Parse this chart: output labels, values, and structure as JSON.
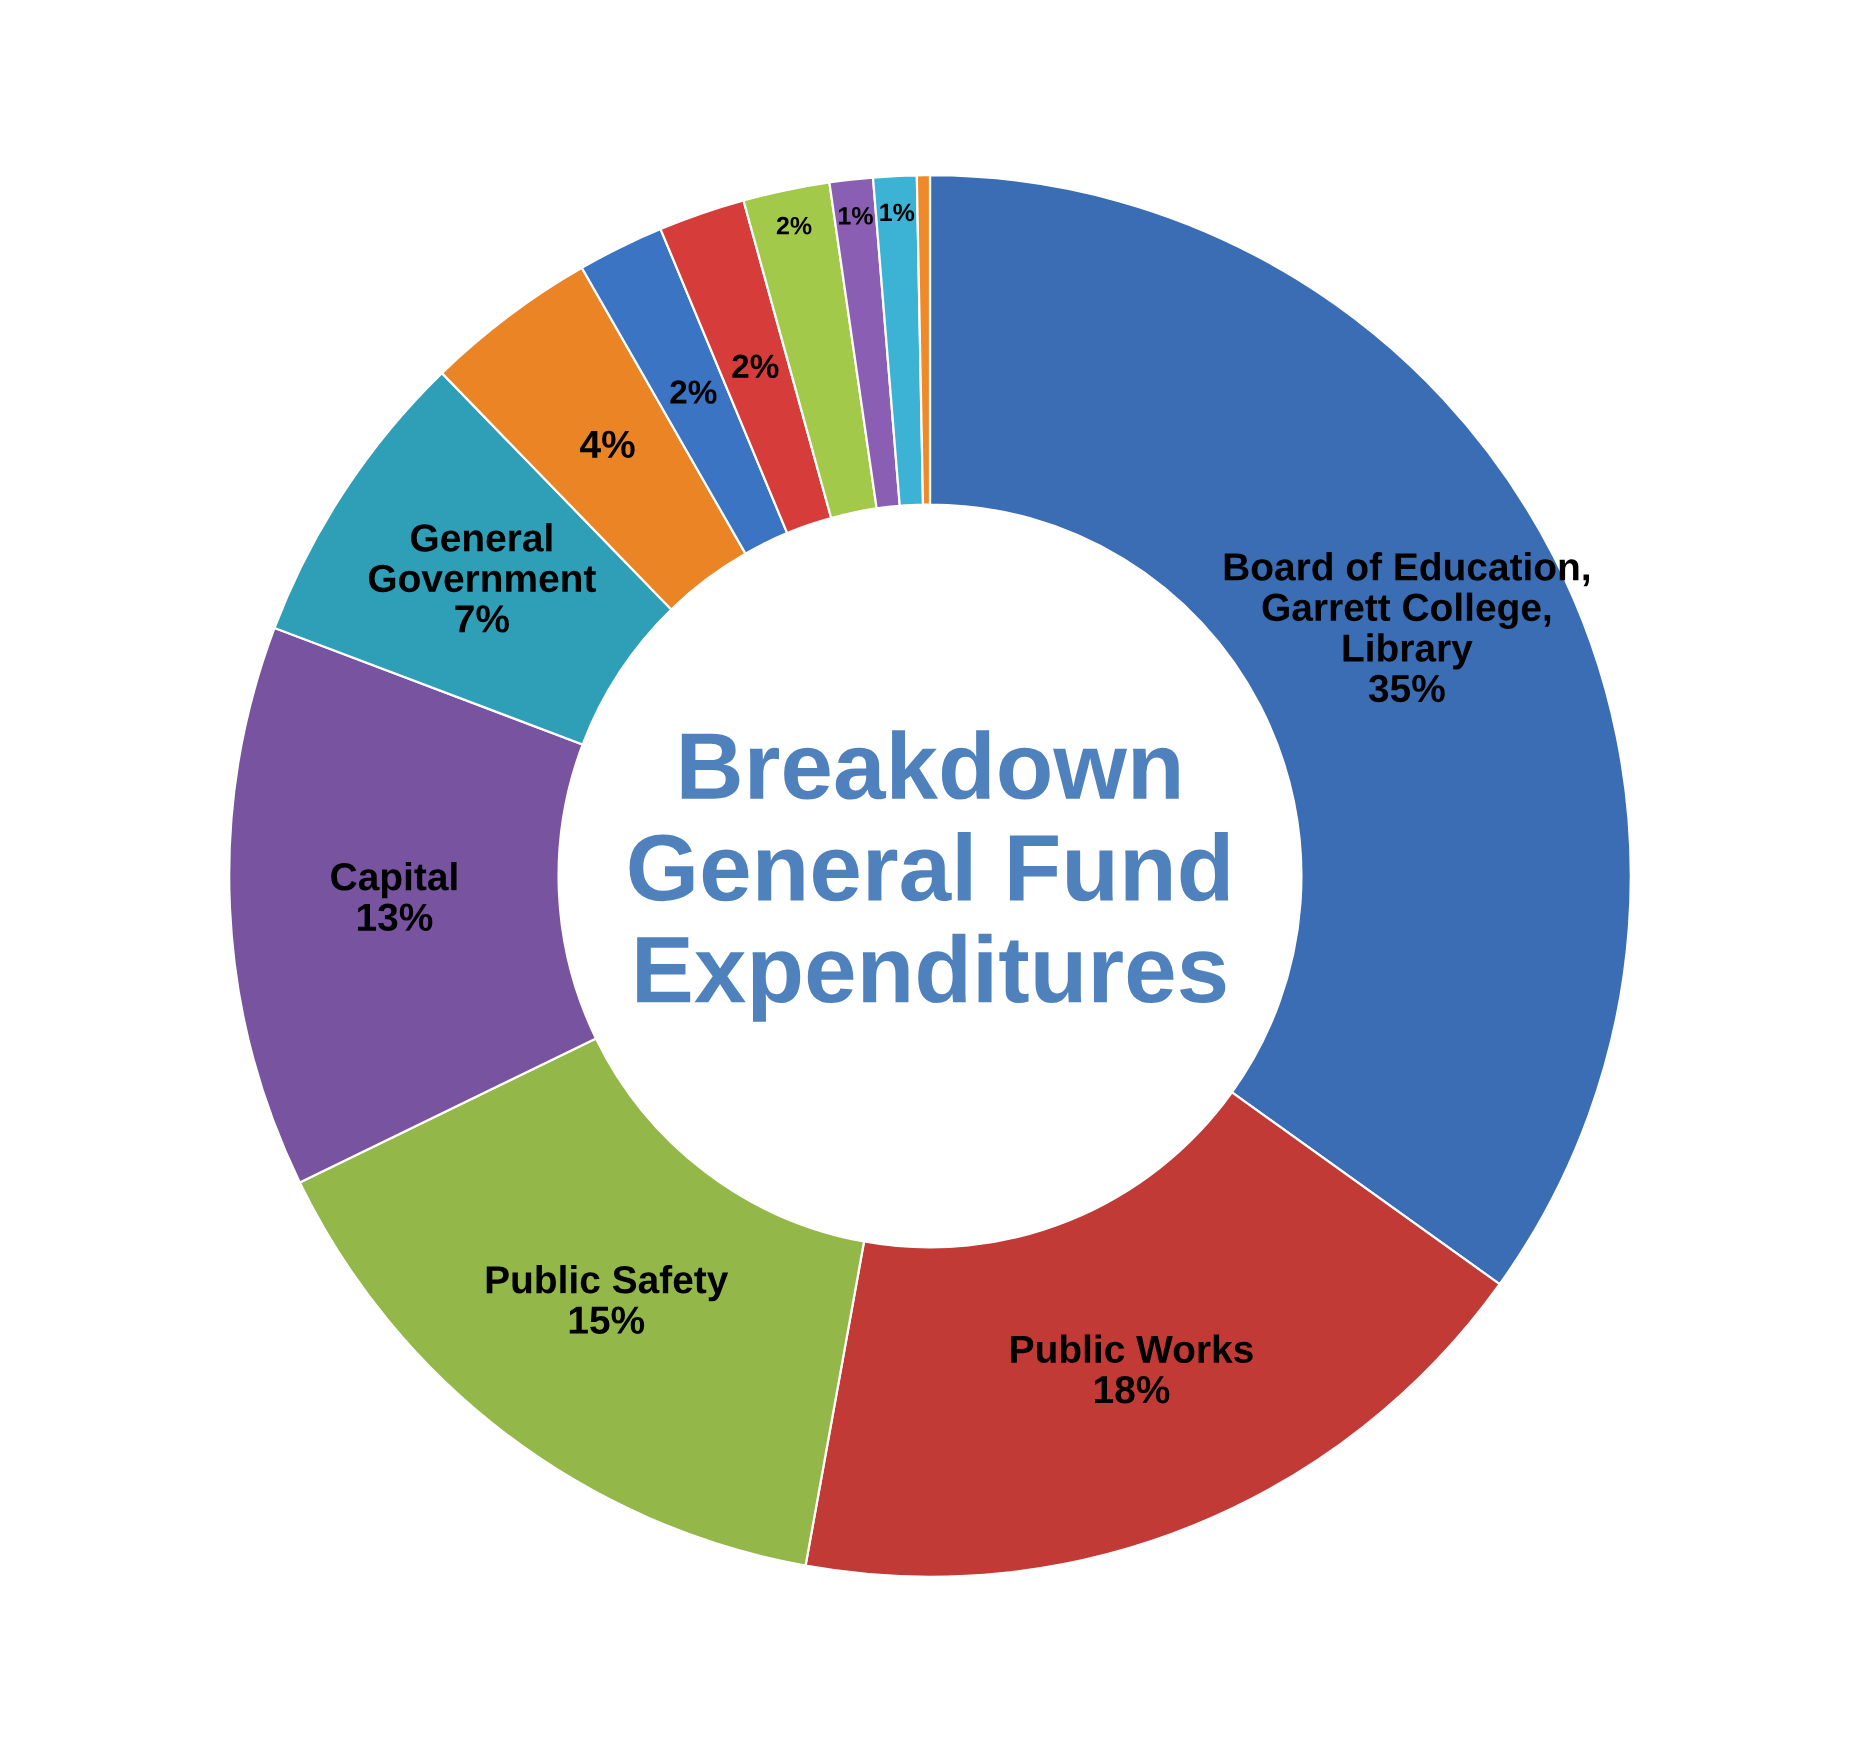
{
  "chart_data": {
    "type": "donut",
    "title": "Breakdown\nGeneral Fund\nExpenditures",
    "categories": [
      "Board of Education,\nGarrett College,\nLibrary",
      "Public Works",
      "Public Safety",
      "Capital",
      "General\nGovernment",
      null,
      null,
      null,
      null,
      null,
      null,
      null
    ],
    "values": [
      35,
      18,
      15,
      13,
      7,
      4,
      2,
      2,
      2,
      1,
      1,
      0.3
    ],
    "value_labels": [
      "35%",
      "18%",
      "15%",
      "13%",
      "7%",
      "4%",
      "2%",
      "2%",
      "2%",
      "1%",
      "1%",
      null
    ],
    "colors": [
      "#3a6db3",
      "#c13a35",
      "#93b749",
      "#7753a0",
      "#2f9fb8",
      "#ea8424",
      "#3a74c2",
      "#d63c3a",
      "#a3c94a",
      "#8a5fb3",
      "#3cb3d4",
      "#ee8a2a"
    ],
    "legend": false
  }
}
